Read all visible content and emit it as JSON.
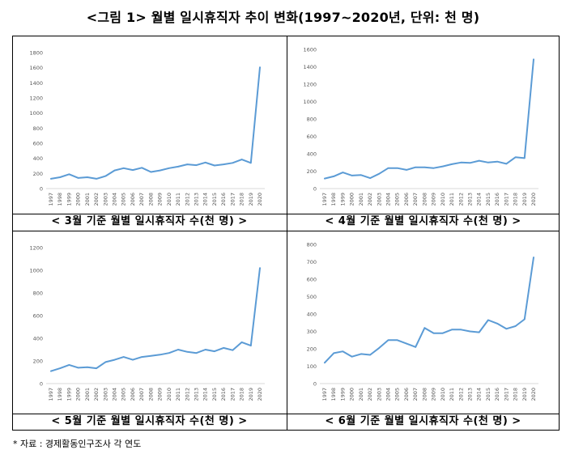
{
  "figure": {
    "title": "<그림 1> 월별 일시휴직자 추이 변화(1997~2020년, 단위: 천 명)",
    "footnote": "* 자료 : 경제활동인구조사 각 연도",
    "line_color": "#5B9BD5"
  },
  "chart_data": [
    {
      "type": "line",
      "caption": "< 3월 기준 월별 일시휴직자 수(천 명) >",
      "categories": [
        "1997",
        "1998",
        "1999",
        "2000",
        "2001",
        "2002",
        "2003",
        "2004",
        "2005",
        "2006",
        "2007",
        "2008",
        "2009",
        "2010",
        "2011",
        "2012",
        "2013",
        "2014",
        "2015",
        "2016",
        "2017",
        "2018",
        "2019",
        "2020"
      ],
      "values": [
        130,
        150,
        190,
        140,
        150,
        130,
        165,
        240,
        270,
        245,
        275,
        220,
        240,
        270,
        290,
        320,
        310,
        345,
        305,
        320,
        340,
        385,
        340,
        1605
      ],
      "ylim": [
        0,
        1800
      ],
      "yticks": [
        0,
        200,
        400,
        600,
        800,
        1000,
        1200,
        1400,
        1600,
        1800
      ],
      "grid": false
    },
    {
      "type": "line",
      "caption": "< 4월 기준 월별 일시휴직자 수(천 명) >",
      "categories": [
        "1997",
        "1998",
        "1999",
        "2000",
        "2001",
        "2002",
        "2003",
        "2004",
        "2005",
        "2006",
        "2007",
        "2008",
        "2009",
        "2010",
        "2011",
        "2012",
        "2013",
        "2014",
        "2015",
        "2016",
        "2017",
        "2018",
        "2019",
        "2020"
      ],
      "values": [
        115,
        140,
        185,
        150,
        155,
        120,
        170,
        235,
        235,
        215,
        245,
        245,
        235,
        255,
        280,
        300,
        295,
        320,
        300,
        310,
        285,
        360,
        350,
        1485
      ],
      "ylim": [
        0,
        1600
      ],
      "yticks": [
        0,
        200,
        400,
        600,
        800,
        1000,
        1200,
        1400,
        1600
      ],
      "grid": false
    },
    {
      "type": "line",
      "caption": "< 5월 기준 월별 일시휴직자 수(천 명) >",
      "categories": [
        "1997",
        "1998",
        "1999",
        "2000",
        "2001",
        "2002",
        "2003",
        "2004",
        "2005",
        "2006",
        "2007",
        "2008",
        "2009",
        "2010",
        "2011",
        "2012",
        "2013",
        "2014",
        "2015",
        "2016",
        "2017",
        "2018",
        "2019",
        "2020"
      ],
      "values": [
        110,
        135,
        165,
        140,
        145,
        135,
        190,
        210,
        235,
        210,
        235,
        245,
        255,
        270,
        300,
        280,
        270,
        300,
        285,
        315,
        295,
        365,
        335,
        1020
      ],
      "ylim": [
        0,
        1200
      ],
      "yticks": [
        0,
        200,
        400,
        600,
        800,
        1000,
        1200
      ],
      "grid": false
    },
    {
      "type": "line",
      "caption": "< 6월 기준 월별 일시휴직자 수(천 명) >",
      "categories": [
        "1997",
        "1998",
        "1999",
        "2000",
        "2001",
        "2002",
        "2003",
        "2004",
        "2005",
        "2006",
        "2007",
        "2008",
        "2009",
        "2010",
        "2011",
        "2012",
        "2013",
        "2014",
        "2015",
        "2016",
        "2017",
        "2018",
        "2019",
        "2020"
      ],
      "values": [
        120,
        175,
        185,
        155,
        170,
        165,
        205,
        250,
        250,
        230,
        210,
        320,
        290,
        290,
        310,
        310,
        300,
        295,
        365,
        345,
        315,
        330,
        370,
        725
      ],
      "ylim": [
        0,
        800
      ],
      "yticks": [
        0,
        100,
        200,
        300,
        400,
        500,
        600,
        700,
        800
      ],
      "grid": false
    }
  ]
}
